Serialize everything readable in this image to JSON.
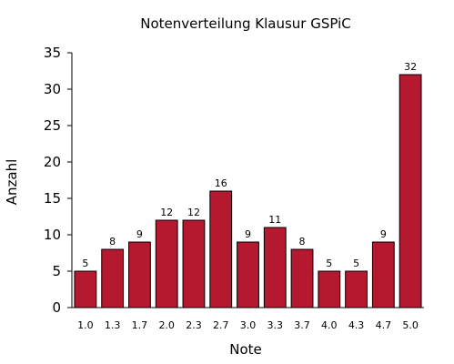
{
  "chart_data": {
    "type": "bar",
    "title": "Notenverteilung Klausur GSPiC",
    "xlabel": "Note",
    "ylabel": "Anzahl",
    "categories": [
      "1.0",
      "1.3",
      "1.7",
      "2.0",
      "2.3",
      "2.7",
      "3.0",
      "3.3",
      "3.7",
      "4.0",
      "4.3",
      "4.7",
      "5.0"
    ],
    "values": [
      5,
      8,
      9,
      12,
      12,
      16,
      9,
      11,
      8,
      5,
      5,
      9,
      32
    ],
    "ylim": [
      0,
      35
    ],
    "yticks": [
      "0",
      "5",
      "10",
      "15",
      "20",
      "25",
      "30",
      "35"
    ],
    "bar_color": "#b5192f",
    "grid": false,
    "legend": "none"
  }
}
